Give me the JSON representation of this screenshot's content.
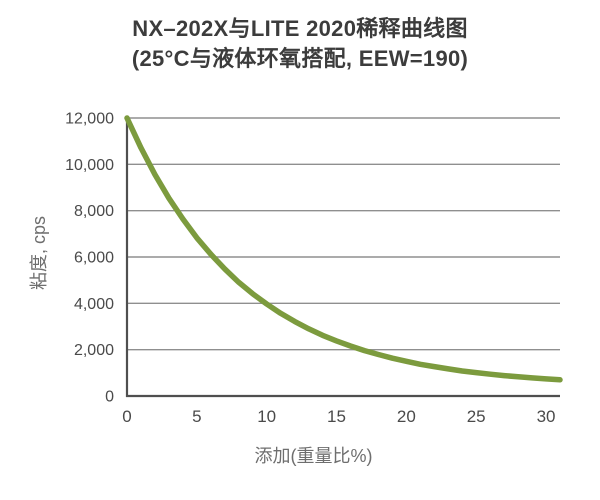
{
  "title": {
    "line1": "NX–202X与LITE 2020稀释曲线图",
    "line2": "(25°C与液体环氧搭配, EEW=190)"
  },
  "chart_data": {
    "type": "line",
    "title": "NX–202X与LITE 2020稀释曲线图",
    "subtitle": "(25°C与液体环氧搭配, EEW=190)",
    "xlabel": "添加(重量比%)",
    "ylabel": "粘度, cps",
    "xlim": [
      0,
      31
    ],
    "ylim": [
      0,
      12000
    ],
    "x_ticks": [
      0,
      5,
      10,
      15,
      20,
      25,
      30
    ],
    "y_ticks": [
      0,
      2000,
      4000,
      6000,
      8000,
      10000,
      12000
    ],
    "y_tick_labels": [
      "0",
      "2,000",
      "4,000",
      "6,000",
      "8,000",
      "10,000",
      "12,000"
    ],
    "grid": "horizontal",
    "legend": "none",
    "colors": {
      "curve": "#7c9b3e",
      "grid": "#8f8f8f",
      "axis": "#4f4f4f",
      "tick_text": "#4a4a4a",
      "axis_title_text": "#6e6e6e",
      "title_text": "#3c3c3c"
    },
    "series": [
      {
        "points": [
          [
            0,
            12000
          ],
          [
            1,
            10710
          ],
          [
            2,
            9560
          ],
          [
            3,
            8540
          ],
          [
            4,
            7640
          ],
          [
            5,
            6830
          ],
          [
            6,
            6120
          ],
          [
            7,
            5480
          ],
          [
            8,
            4910
          ],
          [
            9,
            4410
          ],
          [
            10,
            3970
          ],
          [
            11,
            3570
          ],
          [
            12,
            3220
          ],
          [
            13,
            2900
          ],
          [
            14,
            2620
          ],
          [
            15,
            2380
          ],
          [
            16,
            2160
          ],
          [
            17,
            1960
          ],
          [
            18,
            1790
          ],
          [
            19,
            1630
          ],
          [
            20,
            1500
          ],
          [
            21,
            1370
          ],
          [
            22,
            1270
          ],
          [
            23,
            1170
          ],
          [
            24,
            1080
          ],
          [
            25,
            1010
          ],
          [
            26,
            940
          ],
          [
            27,
            880
          ],
          [
            28,
            830
          ],
          [
            29,
            780
          ],
          [
            30,
            740
          ],
          [
            31,
            700
          ]
        ]
      }
    ]
  }
}
